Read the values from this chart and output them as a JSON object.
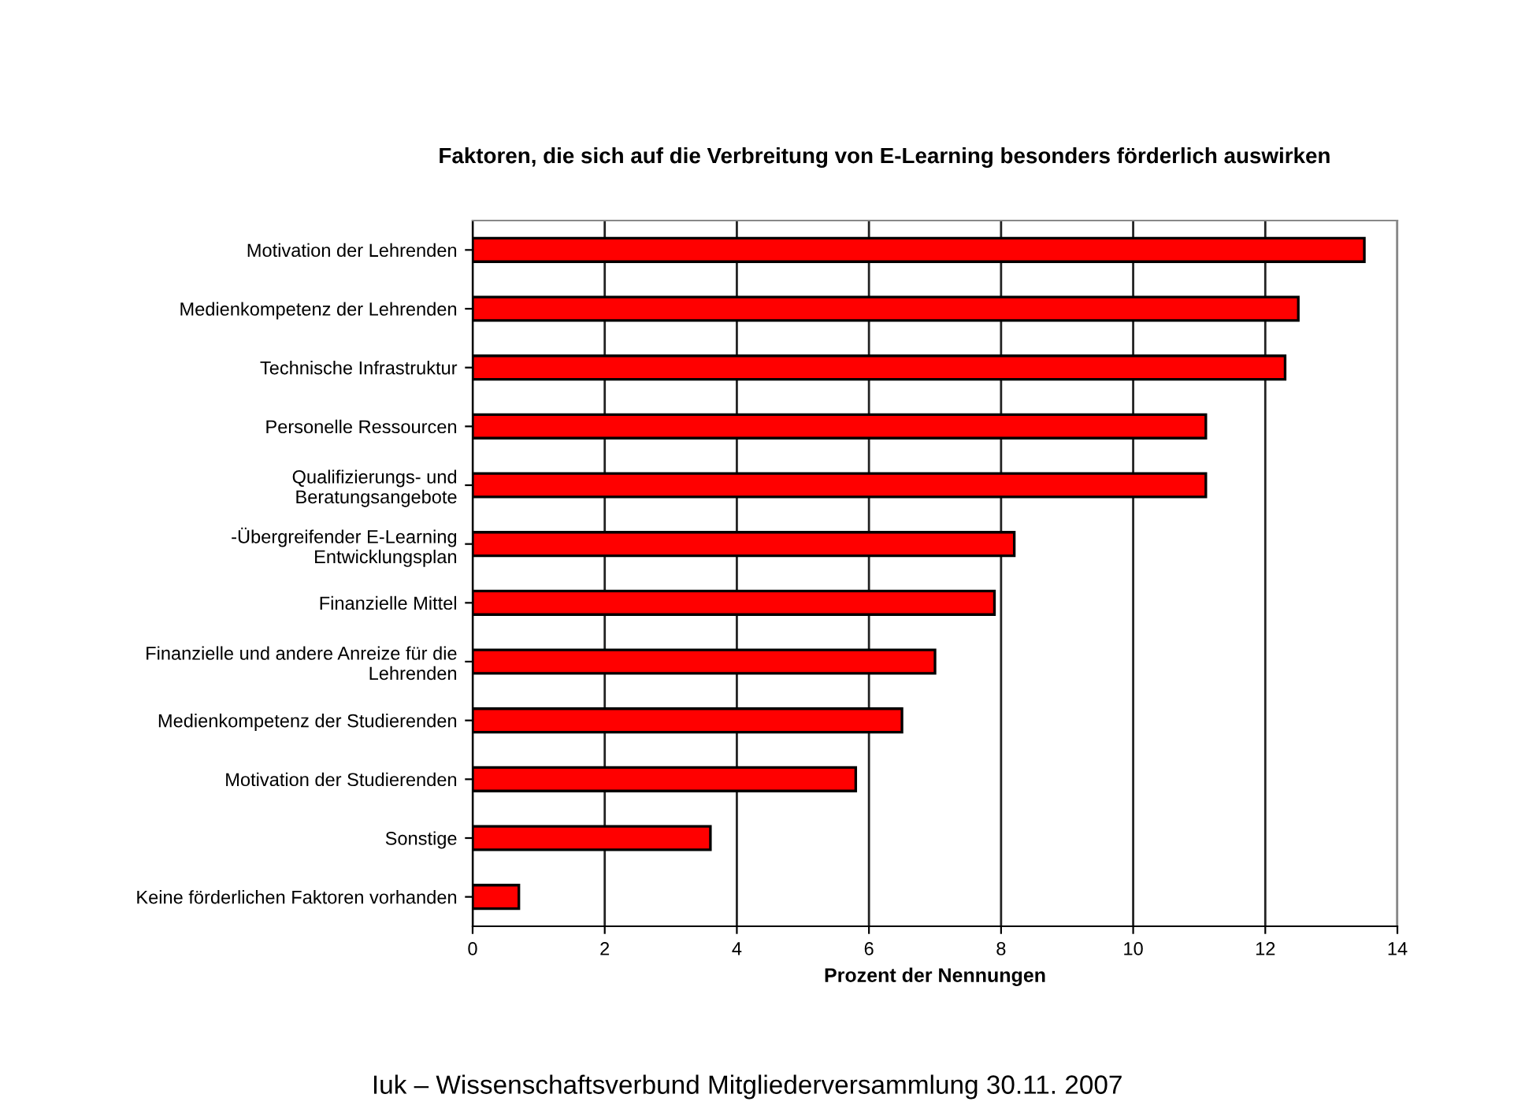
{
  "chart_data": {
    "type": "bar",
    "orientation": "horizontal",
    "title": "Faktoren, die sich auf die Verbreitung von E-Learning besonders förderlich auswirken",
    "xlabel": "Prozent der Nennungen",
    "categories": [
      "Motivation der Lehrenden",
      "Medienkompetenz der Lehrenden",
      "Technische Infrastruktur",
      "Personelle Ressourcen",
      "Qualifizierungs- und\nBeratungsangebote",
      "-Übergreifender E-Learning\nEntwicklungsplan",
      "Finanzielle Mittel",
      "Finanzielle und andere Anreize für die\nLehrenden",
      "Medienkompetenz der Studierenden",
      "Motivation der Studierenden",
      "Sonstige",
      "Keine förderlichen Faktoren vorhanden"
    ],
    "values": [
      13.5,
      12.5,
      12.3,
      11.1,
      11.1,
      8.2,
      7.9,
      7.0,
      6.5,
      5.8,
      3.6,
      0.7
    ],
    "color": "#ff0000",
    "xlim": [
      0,
      14
    ],
    "xticks": [
      0,
      2,
      4,
      6,
      8,
      10,
      12,
      14
    ],
    "grid": "x",
    "annotations": [
      "Iuk – Wissenschaftsverbund Mitgliederversammlung 30.11. 2007"
    ]
  }
}
